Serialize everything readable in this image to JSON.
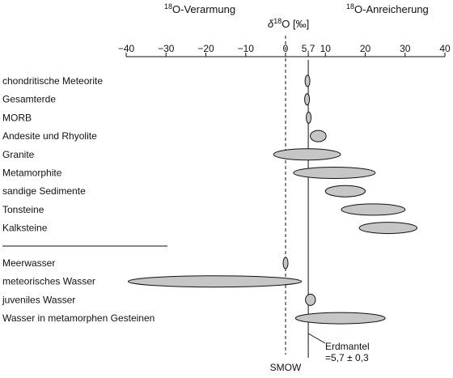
{
  "header": {
    "left_sup": "18",
    "left_text": "O-Verarmung",
    "right_sup": "18",
    "right_text": "O-Anreicherung",
    "axis_delta": "δ",
    "axis_sup": "18",
    "axis_rest": "O [‰]"
  },
  "axis": {
    "min": -40,
    "max": 40,
    "ticks": [
      {
        "value": -40,
        "label": "−40"
      },
      {
        "value": -30,
        "label": "−30"
      },
      {
        "value": -20,
        "label": "−20"
      },
      {
        "value": -10,
        "label": "−10"
      },
      {
        "value": 0,
        "label": "0"
      },
      {
        "value": 5.7,
        "label": "5,7"
      },
      {
        "value": 10,
        "label": "10"
      },
      {
        "value": 20,
        "label": "20"
      },
      {
        "value": 30,
        "label": "30"
      },
      {
        "value": 40,
        "label": "40"
      }
    ]
  },
  "reference_lines": {
    "smow": {
      "value": 0,
      "label": "SMOW"
    },
    "mantle": {
      "value": 5.7,
      "label_line1": "Erdmantel",
      "label_line2": "=5,7 ± 0,3"
    }
  },
  "chart_data": {
    "type": "range",
    "unit": "‰",
    "groups": [
      {
        "items": [
          {
            "label": "chondritische Meteorite",
            "min": 5.0,
            "max": 6.0
          },
          {
            "label": "Gesamterde",
            "min": 4.9,
            "max": 5.9
          },
          {
            "label": "MORB",
            "min": 5.2,
            "max": 6.4
          },
          {
            "label": "Andesite und Rhyolite",
            "min": 6.2,
            "max": 10.2
          },
          {
            "label": "Granite",
            "min": -3.0,
            "max": 13.8
          },
          {
            "label": "Metamorphite",
            "min": 2.0,
            "max": 22.5
          },
          {
            "label": "sandige Sedimente",
            "min": 10.0,
            "max": 20.0
          },
          {
            "label": "Tonsteine",
            "min": 14.0,
            "max": 30.0
          },
          {
            "label": "Kalksteine",
            "min": 18.5,
            "max": 33.0
          }
        ]
      },
      {
        "items": [
          {
            "label": "Meerwasser",
            "min": -0.5,
            "max": 0.5
          },
          {
            "label": "meteorisches Wasser",
            "min": -39.5,
            "max": 4.0
          },
          {
            "label": "juveniles Wasser",
            "min": 5.0,
            "max": 7.5
          },
          {
            "label": "Wasser in metamorphen Gesteinen",
            "min": 2.5,
            "max": 25.0
          }
        ]
      }
    ]
  },
  "colors": {
    "ellipse_fill": "#c6c6c6",
    "stroke": "#111111"
  }
}
